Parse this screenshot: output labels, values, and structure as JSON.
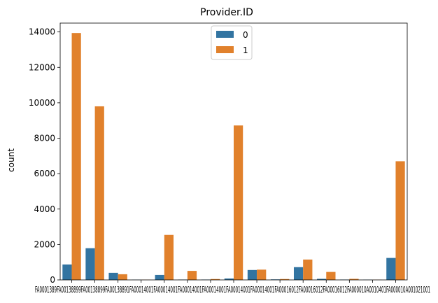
{
  "chart_data": {
    "type": "bar",
    "title": "Provider.ID",
    "xlabel": "",
    "ylabel": "count",
    "ylim": [
      0,
      14500
    ],
    "yticks": [
      0,
      2000,
      4000,
      6000,
      8000,
      10000,
      12000,
      14000
    ],
    "grid": false,
    "legend_position": "top-center",
    "categories": [
      "FA00013889",
      "FA00038803",
      "FA00045658",
      "FA00055101",
      "FA00070744",
      "FA00078065",
      "FA00094001",
      "FA00109887",
      "FA00100401",
      "FA00100431",
      "FA00100461",
      "FA00100491",
      "FA00100501",
      "FA00100611",
      "FA00100621001"
    ],
    "x_tick_text": "FA0001389FA00138899FA00138899FA00138891FA00014001FA00014001FA00014001FA00014001FA00014001FA00014001FA00016012FA00016012FA00016012FA000010A0010401FA000010A001021001",
    "series": [
      {
        "name": "0",
        "color": "#3274a1",
        "values": [
          870,
          1790,
          400,
          10,
          280,
          20,
          20,
          80,
          560,
          30,
          720,
          60,
          20,
          10,
          1240
        ]
      },
      {
        "name": "1",
        "color": "#e1812c",
        "values": [
          13940,
          9800,
          320,
          10,
          2540,
          510,
          50,
          8720,
          580,
          50,
          1150,
          450,
          60,
          10,
          6700
        ]
      }
    ]
  }
}
